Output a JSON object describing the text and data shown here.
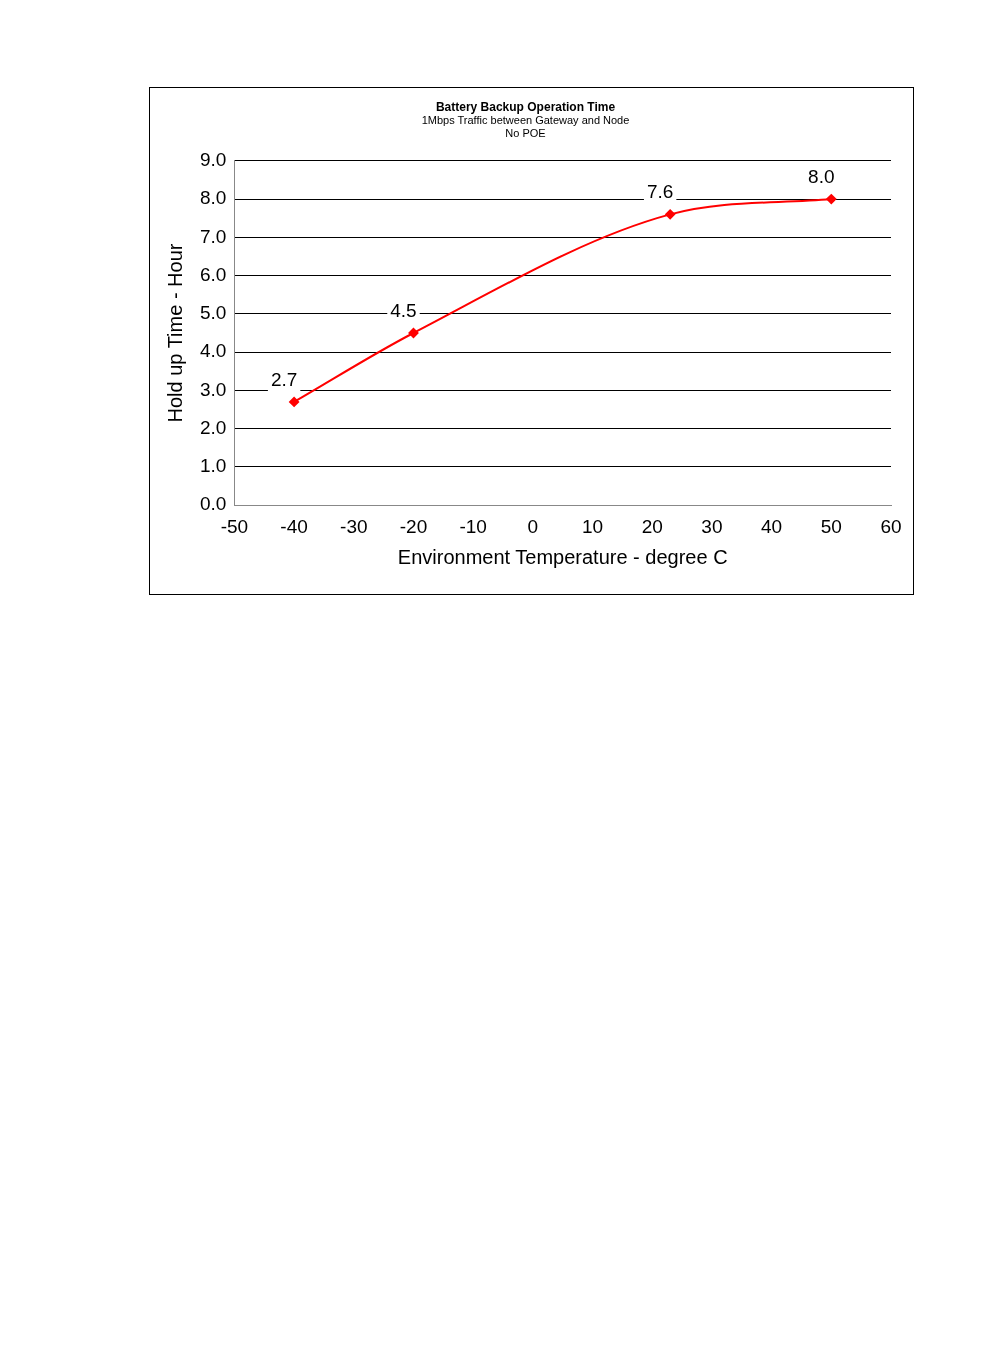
{
  "chart_data": {
    "type": "line",
    "title": "Battery Backup Operation Time",
    "subtitle": "1Mbps Traffic between Gateway and Node\nNo POE",
    "xlabel": "Environment Temperature - degree C",
    "ylabel": "Hold up Time - Hour",
    "x": [
      -40,
      -20,
      23,
      50
    ],
    "series": [
      {
        "color": "#ff0000",
        "values": [
          2.7,
          4.5,
          7.6,
          8.0
        ],
        "value_labels": [
          "2.7",
          "4.5",
          "7.6",
          "8.0"
        ]
      }
    ],
    "xlim": [
      -50,
      60
    ],
    "xticks": [
      -50,
      -40,
      -30,
      -20,
      -10,
      0,
      10,
      20,
      30,
      40,
      50,
      60
    ],
    "ylim": [
      0,
      9
    ],
    "yticks": [
      {
        "value": 0,
        "label": "0.0"
      },
      {
        "value": 1,
        "label": "1.0"
      },
      {
        "value": 2,
        "label": "2.0"
      },
      {
        "value": 3,
        "label": "3.0"
      },
      {
        "value": 4,
        "label": "4.0"
      },
      {
        "value": 5,
        "label": "5.0"
      },
      {
        "value": 6,
        "label": "6.0"
      },
      {
        "value": 7,
        "label": "7.0"
      },
      {
        "value": 8,
        "label": "8.0"
      },
      {
        "value": 9,
        "label": "9.0"
      }
    ],
    "grid": "y",
    "marker": "diamond",
    "line_style": "solid",
    "legend": false
  }
}
